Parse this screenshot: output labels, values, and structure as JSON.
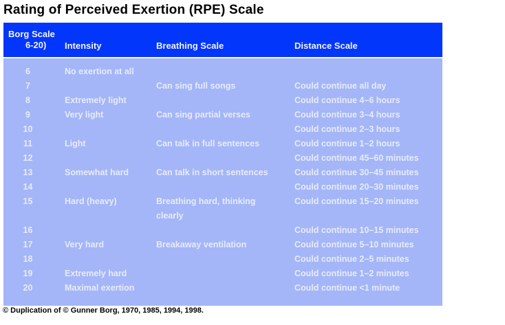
{
  "page": {
    "title": "Rating of Perceived Exertion (RPE) Scale",
    "footer": "© Duplication of © Gunner Borg, 1970, 1985, 1994, 1998."
  },
  "colors": {
    "header_bg": "#0336fb",
    "body_bg": "#a4b6f7",
    "header_text": "#f0f4ff",
    "body_text": "#e6ebfb",
    "title_text": "#000000",
    "footer_text": "#000000"
  },
  "table": {
    "header": {
      "borg_line1": "Borg Scale",
      "borg_line2": "6-20)",
      "intensity": "Intensity",
      "breathing": "Breathing Scale",
      "distance": "Distance Scale"
    },
    "rows": [
      {
        "borg": "6",
        "intensity": "No exertion at all",
        "breathing": "",
        "distance": ""
      },
      {
        "borg": "7",
        "intensity": "",
        "breathing": "Can sing full songs",
        "distance": "Could continue all day"
      },
      {
        "borg": "8",
        "intensity": "Extremely light",
        "breathing": "",
        "distance": "Could continue 4–6 hours"
      },
      {
        "borg": "9",
        "intensity": "Very light",
        "breathing": "Can sing partial verses",
        "distance": "Could continue 3–4 hours"
      },
      {
        "borg": "10",
        "intensity": "",
        "breathing": "",
        "distance": "Could continue 2–3 hours"
      },
      {
        "borg": "11",
        "intensity": "Light",
        "breathing": "Can talk in full sentences",
        "distance": "Could continue 1–2 hours"
      },
      {
        "borg": "12",
        "intensity": "",
        "breathing": "",
        "distance": "Could continue 45–60 minutes"
      },
      {
        "borg": "13",
        "intensity": "Somewhat hard",
        "breathing": "Can talk in short sentences",
        "distance": "Could continue 30–45 minutes"
      },
      {
        "borg": "14",
        "intensity": "",
        "breathing": "",
        "distance": "Could continue 20–30 minutes"
      },
      {
        "borg": "15",
        "intensity": "Hard (heavy)",
        "breathing": "Breathing hard, thinking clearly",
        "distance": "Could continue 15–20 minutes"
      },
      {
        "borg": "16",
        "intensity": "",
        "breathing": "",
        "distance": "Could continue 10–15 minutes"
      },
      {
        "borg": "17",
        "intensity": "Very hard",
        "breathing": "Breakaway ventilation",
        "distance": "Could continue 5–10 minutes"
      },
      {
        "borg": "18",
        "intensity": "",
        "breathing": "",
        "distance": "Could continue 2–5 minutes"
      },
      {
        "borg": "19",
        "intensity": "Extremely hard",
        "breathing": "",
        "distance": "Could continue 1–2 minutes"
      },
      {
        "borg": "20",
        "intensity": "Maximal exertion",
        "breathing": "",
        "distance": "Could continue <1 minute"
      }
    ]
  }
}
